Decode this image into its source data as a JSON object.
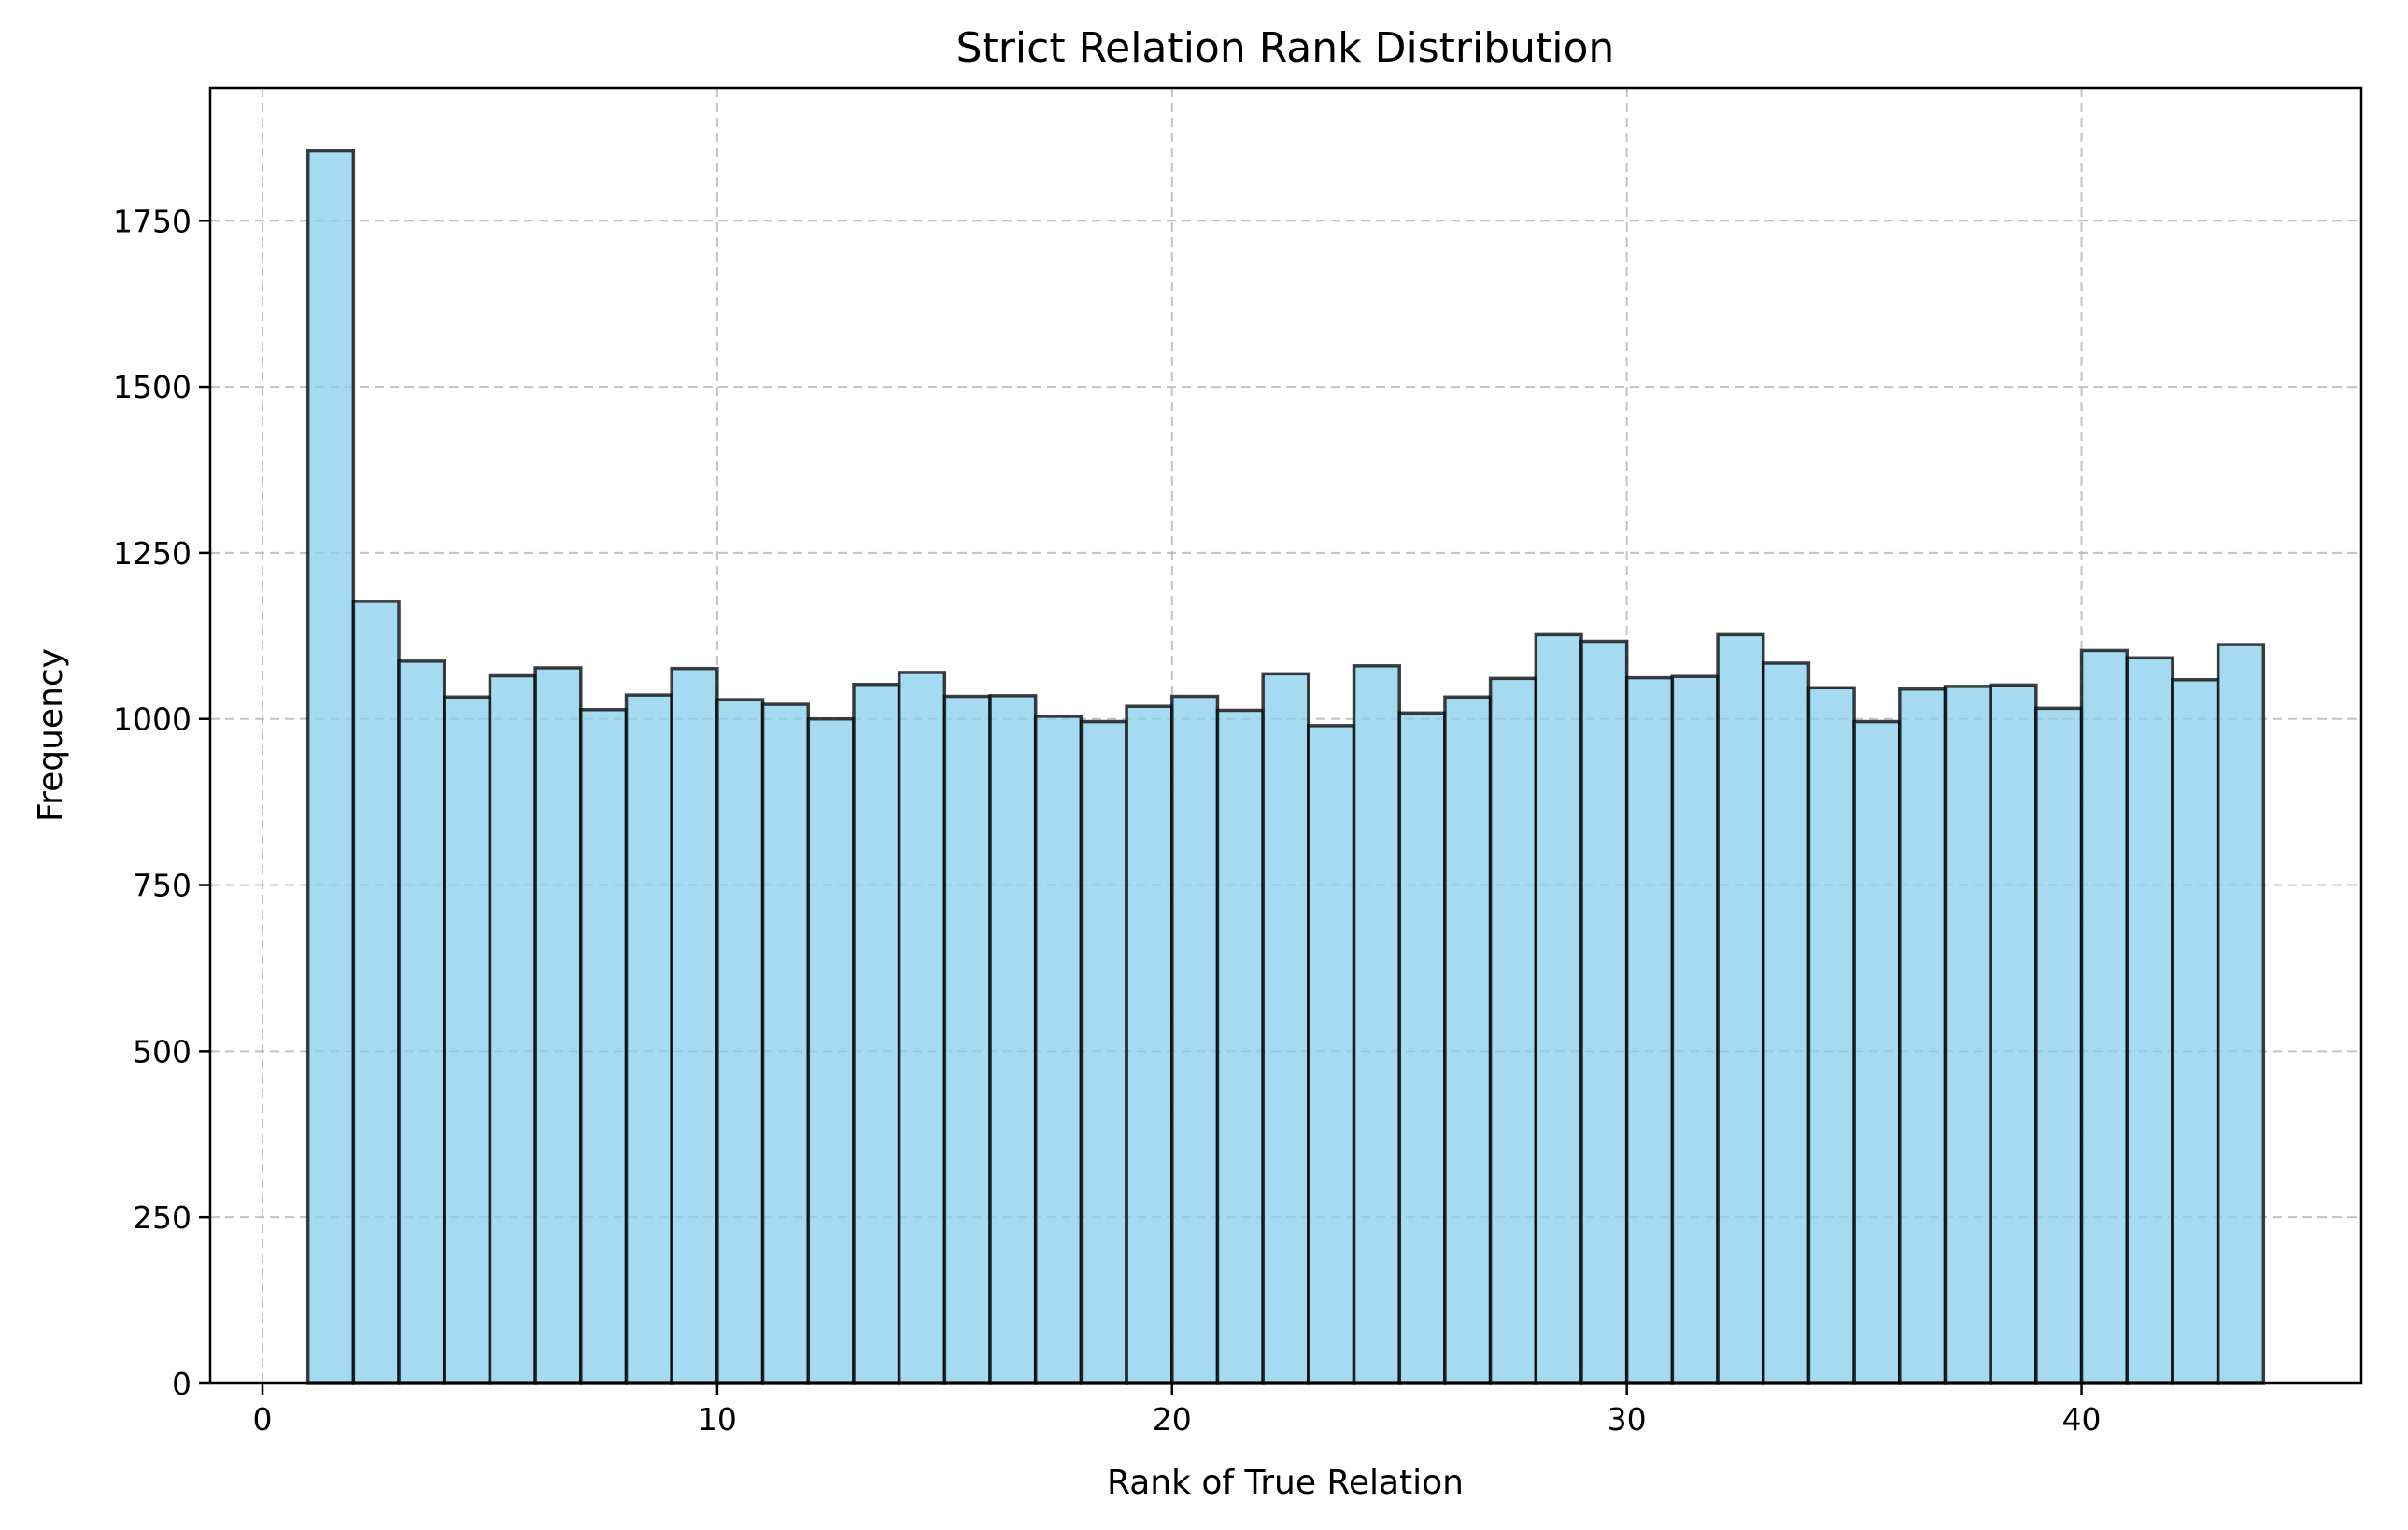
{
  "chart_data": {
    "type": "bar",
    "title": "Strict Relation Rank Distribution",
    "xlabel": "Rank of True Relation",
    "ylabel": "Frequency",
    "xlim": [
      -1.15,
      46.15
    ],
    "ylim": [
      0,
      1950
    ],
    "xticks": [
      0,
      10,
      20,
      30,
      40
    ],
    "yticks": [
      0,
      250,
      500,
      750,
      1000,
      1250,
      1500,
      1750
    ],
    "grid": true,
    "bin_width": 1,
    "bin_starts": [
      1,
      2,
      3,
      4,
      5,
      6,
      7,
      8,
      9,
      10,
      11,
      12,
      13,
      14,
      15,
      16,
      17,
      18,
      19,
      20,
      21,
      22,
      23,
      24,
      25,
      26,
      27,
      28,
      29,
      30,
      31,
      32,
      33,
      34,
      35,
      36,
      37,
      38,
      39,
      40,
      41,
      42,
      43
    ],
    "values": [
      1855,
      1177,
      1087,
      1033,
      1065,
      1077,
      1014,
      1036,
      1076,
      1029,
      1022,
      1000,
      1052,
      1070,
      1034,
      1035,
      1004,
      996,
      1019,
      1034,
      1013,
      1068,
      990,
      1080,
      1009,
      1033,
      1061,
      1127,
      1117,
      1062,
      1064,
      1127,
      1084,
      1047,
      996,
      1045,
      1049,
      1051,
      1016,
      1103,
      1092,
      1059,
      1112
    ],
    "colors": {
      "bar_fill": "#87ceeb",
      "bar_edge": "#000000",
      "grid": "#b0b0b0"
    }
  }
}
